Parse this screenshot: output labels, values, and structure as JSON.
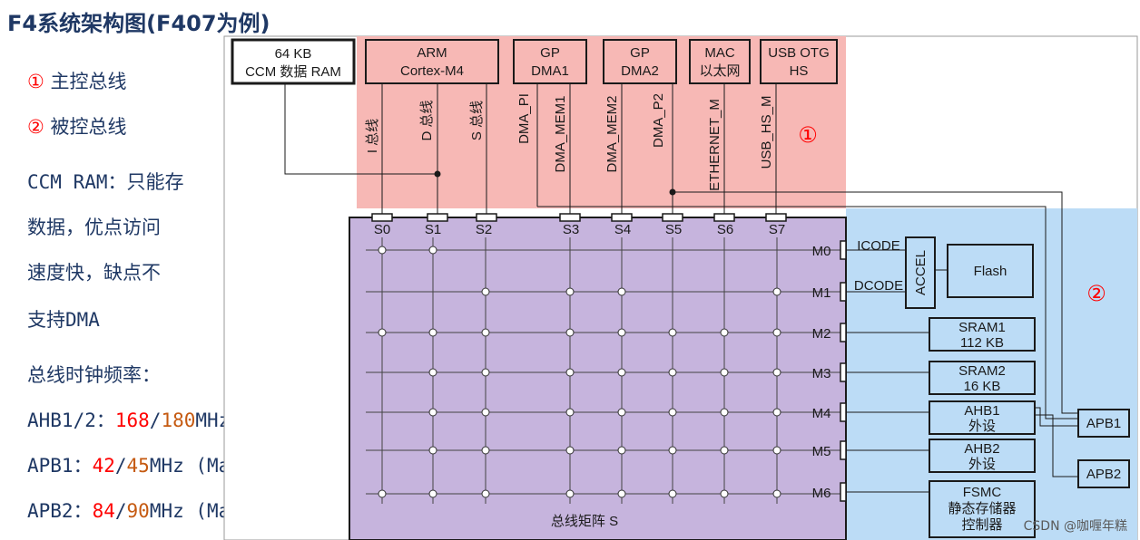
{
  "title": "F4系统架构图(F407为例)",
  "legend": {
    "item1": {
      "num": "①",
      "text": "主控总线"
    },
    "item2": {
      "num": "②",
      "text": "被控总线"
    }
  },
  "ccm_note": [
    "CCM RAM：只能存",
    "数据，优点访问",
    "速度快，缺点不",
    "支持DMA"
  ],
  "freq": {
    "heading": "总线时钟频率：",
    "ahb": {
      "label": "AHB1/2：",
      "v1": "168",
      "sep": "/",
      "v2": "180",
      "unit": "MHz (Max)"
    },
    "apb1": {
      "label": "APB1：",
      "v1": "42",
      "sep": "/",
      "v2": "45",
      "unit": "MHz (Max)"
    },
    "apb2": {
      "label": "APB2：",
      "v1": "84",
      "sep": "/",
      "v2": "90",
      "unit": "MHz (Max)"
    }
  },
  "masters": {
    "ccm": [
      "64 KB",
      "CCM 数据 RAM"
    ],
    "arm": [
      "ARM",
      "Cortex-M4"
    ],
    "dma1": [
      "GP",
      "DMA1"
    ],
    "dma2": [
      "GP",
      "DMA2"
    ],
    "mac": [
      "MAC",
      "以太网"
    ],
    "usb": [
      "USB OTG",
      "HS"
    ]
  },
  "master_buses": [
    "I 总线",
    "D 总线",
    "S 总线",
    "DMA_PI",
    "DMA_MEM1",
    "DMA_MEM2",
    "DMA_P2",
    "ETHERNET_M",
    "USB_HS_M"
  ],
  "slave_ports": [
    "S0",
    "S1",
    "S2",
    "S3",
    "S4",
    "S5",
    "S6",
    "S7"
  ],
  "matrix_ports": [
    "M0",
    "M1",
    "M2",
    "M3",
    "M4",
    "M5",
    "M6"
  ],
  "matrix_label": "总线矩阵 S",
  "zone1": "①",
  "zone2": "②",
  "slaves": {
    "icode": "ICODE",
    "dcode": "DCODE",
    "accel": "ACCEL",
    "flash": "Flash",
    "sram1": [
      "SRAM1",
      "112 KB"
    ],
    "sram2": [
      "SRAM2",
      "16 KB"
    ],
    "ahb1": [
      "AHB1",
      "外设"
    ],
    "ahb2": [
      "AHB2",
      "外设"
    ],
    "fsmc": [
      "FSMC",
      "静态存储器",
      "控制器"
    ],
    "apb1": "APB1",
    "apb2": "APB2"
  },
  "colors": {
    "master_zone": "#f7b8b5",
    "matrix_zone": "#c6b4dd",
    "slave_zone": "#bcdcf6",
    "accent_red": "#ff0000",
    "accent_brown": "#c55a11",
    "title": "#1f3864"
  },
  "watermark": "CSDN @咖喱年糕"
}
